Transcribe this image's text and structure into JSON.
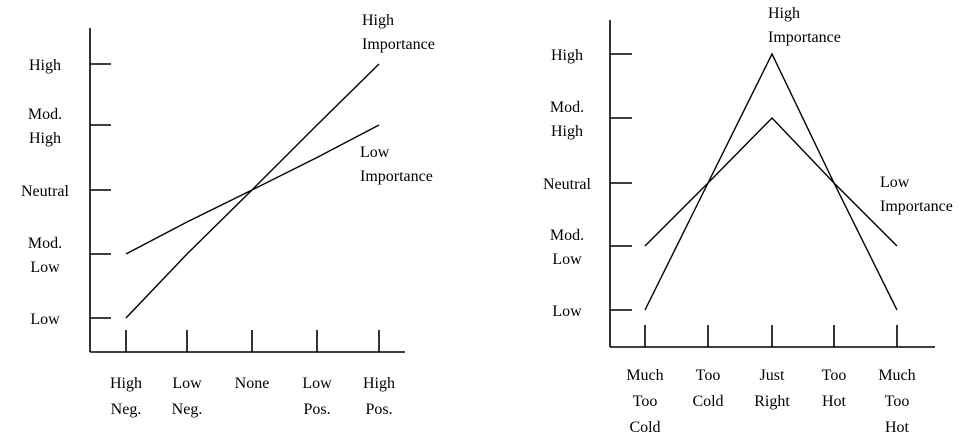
{
  "chart_data": [
    {
      "type": "line",
      "categories": [
        [
          "High",
          "Neg."
        ],
        [
          "Low",
          "Neg."
        ],
        [
          "None"
        ],
        [
          "Low",
          "Pos."
        ],
        [
          "High",
          "Pos."
        ]
      ],
      "y_levels": [
        [
          "Low"
        ],
        [
          "Mod.",
          "Low"
        ],
        [
          "Neutral"
        ],
        [
          "Mod.",
          "High"
        ],
        [
          "High"
        ]
      ],
      "ylim": [
        0,
        4
      ],
      "grid": false,
      "series": [
        {
          "name": [
            "High",
            "Importance"
          ],
          "values": [
            0,
            1,
            2,
            3,
            4
          ]
        },
        {
          "name": [
            "Low",
            "Importance"
          ],
          "values": [
            1,
            1.5,
            2,
            2.5,
            3
          ]
        }
      ]
    },
    {
      "type": "line",
      "categories": [
        [
          "Much",
          "Too",
          "Cold"
        ],
        [
          "Too",
          "Cold"
        ],
        [
          "Just",
          "Right"
        ],
        [
          "Too",
          "Hot"
        ],
        [
          "Much",
          "Too",
          "Hot"
        ]
      ],
      "y_levels": [
        [
          "Low"
        ],
        [
          "Mod.",
          "Low"
        ],
        [
          "Neutral"
        ],
        [
          "Mod.",
          "High"
        ],
        [
          "High"
        ]
      ],
      "ylim": [
        0,
        4
      ],
      "grid": false,
      "series": [
        {
          "name": [
            "High",
            "Importance"
          ],
          "values": [
            0,
            2,
            4,
            2,
            0
          ]
        },
        {
          "name": [
            "Low",
            "Importance"
          ],
          "values": [
            1,
            2,
            3,
            2,
            1
          ]
        }
      ]
    }
  ]
}
